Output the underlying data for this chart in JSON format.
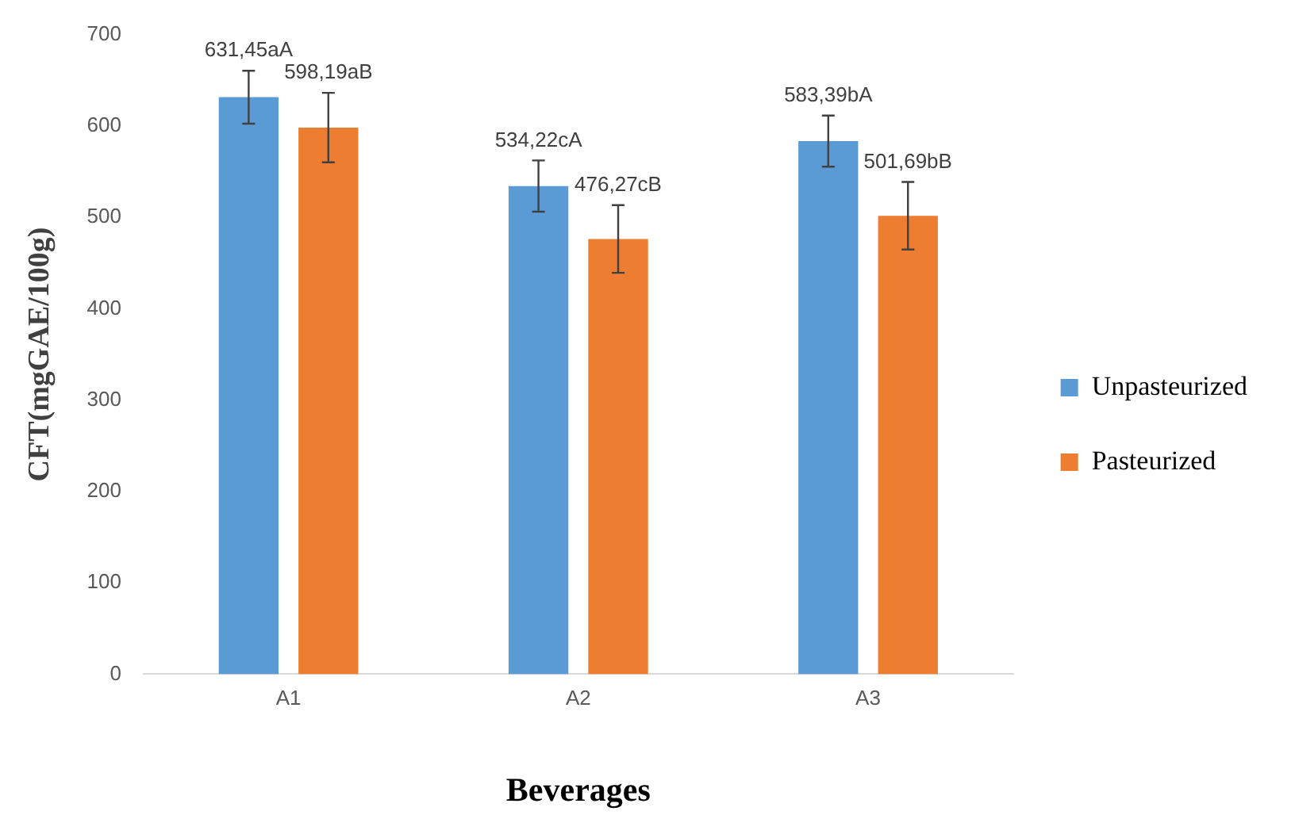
{
  "chart_data": {
    "type": "bar",
    "xlabel": "Beverages",
    "ylabel": "CFT(mgGAE/100g)",
    "categories": [
      "A1",
      "A2",
      "A3"
    ],
    "series": [
      {
        "name": "Unpasteurized",
        "color": "#5b9bd5",
        "values": [
          631.45,
          534.22,
          583.39
        ],
        "errors": [
          29,
          28,
          28
        ],
        "value_labels": [
          "631,45aA",
          "534,22cA",
          "583,39bA"
        ]
      },
      {
        "name": "Pasteurized",
        "color": "#ed7d31",
        "values": [
          598.19,
          476.27,
          501.69
        ],
        "errors": [
          38,
          37,
          37
        ],
        "value_labels": [
          "598,19aB",
          "476,27cB",
          "501,69bB"
        ]
      }
    ],
    "ylim": [
      0,
      700
    ],
    "yticks": [
      0,
      100,
      200,
      300,
      400,
      500,
      600,
      700
    ],
    "grid": false,
    "legend": "right"
  }
}
